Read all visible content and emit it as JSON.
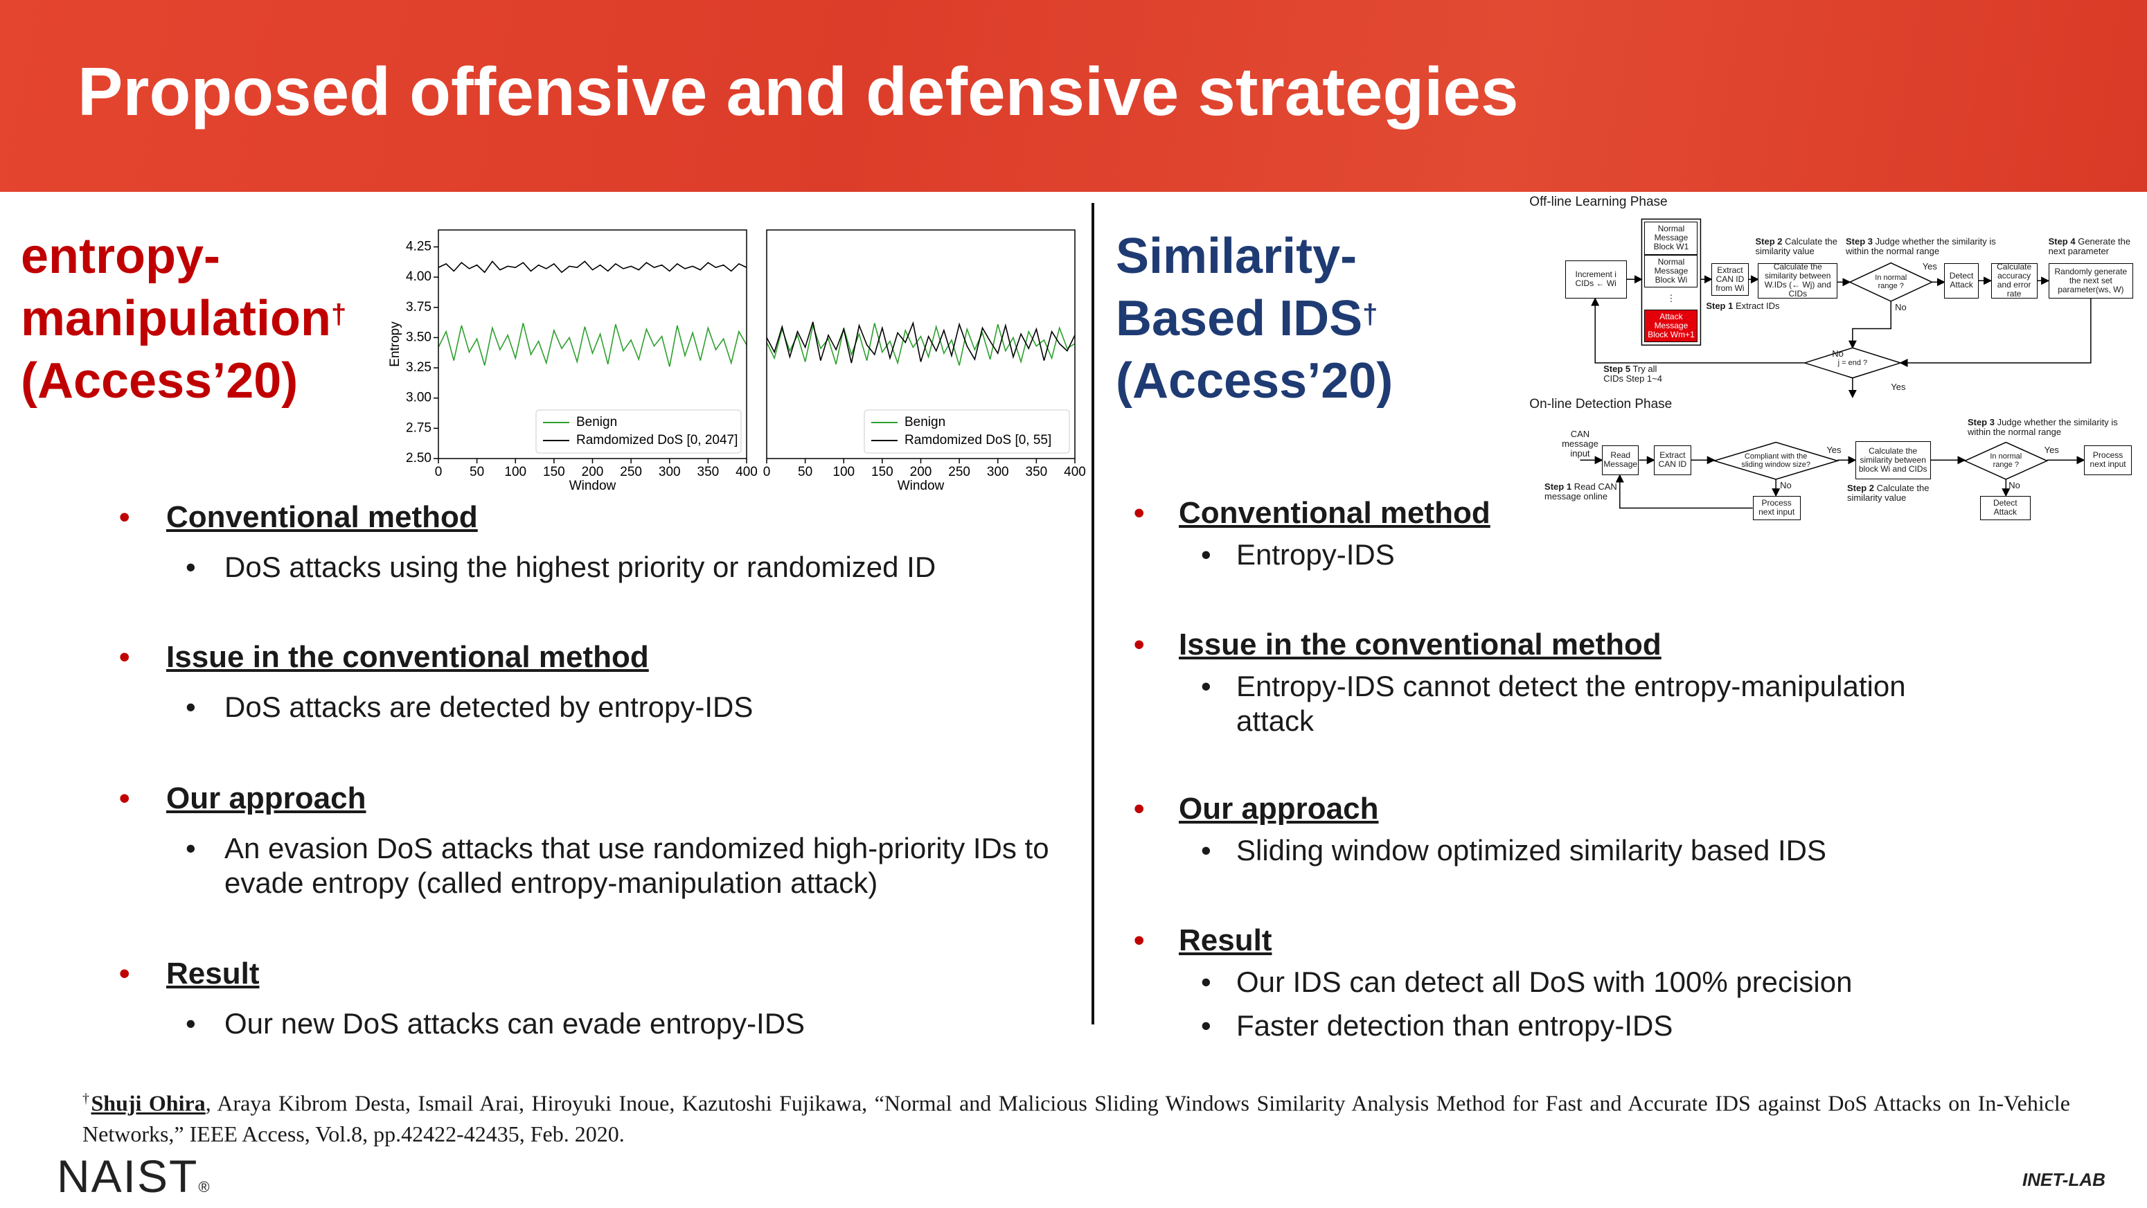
{
  "header": {
    "title": "Proposed offensive and defensive strategies"
  },
  "left": {
    "heading": [
      "entropy-",
      "manipulation"
    ],
    "dagger": "†",
    "venue": "(Access’20)",
    "plots": [
      {
        "type": "line",
        "x": [
          0,
          10,
          20,
          30,
          40,
          50,
          60,
          70,
          80,
          90,
          100,
          110,
          120,
          130,
          140,
          150,
          160,
          170,
          180,
          190,
          200,
          210,
          220,
          230,
          240,
          250,
          260,
          270,
          280,
          290,
          300,
          310,
          320,
          330,
          340,
          350,
          360,
          370,
          380,
          390,
          400
        ],
        "series": [
          {
            "name": "Benign",
            "color": "#2ca02c",
            "values": [
              3.42,
              3.55,
              3.31,
              3.6,
              3.38,
              3.49,
              3.27,
              3.58,
              3.4,
              3.52,
              3.33,
              3.62,
              3.36,
              3.47,
              3.29,
              3.56,
              3.41,
              3.5,
              3.3,
              3.59,
              3.37,
              3.53,
              3.28,
              3.61,
              3.39,
              3.48,
              3.32,
              3.57,
              3.43,
              3.51,
              3.26,
              3.6,
              3.35,
              3.54,
              3.31,
              3.58,
              3.4,
              3.49,
              3.29,
              3.55,
              3.44
            ]
          },
          {
            "name": "Ramdomized DoS [0, 2047]",
            "color": "#000000",
            "values": [
              4.08,
              4.11,
              4.05,
              4.12,
              4.07,
              4.1,
              4.04,
              4.13,
              4.06,
              4.09,
              4.08,
              4.12,
              4.05,
              4.1,
              4.07,
              4.11,
              4.04,
              4.09,
              4.08,
              4.13,
              4.06,
              4.1,
              4.05,
              4.11,
              4.07,
              4.09,
              4.06,
              4.12,
              4.08,
              4.1,
              4.05,
              4.11,
              4.07,
              4.09,
              4.06,
              4.12,
              4.08,
              4.1,
              4.05,
              4.11,
              4.08
            ]
          }
        ],
        "xlim": [
          0,
          400
        ],
        "xticks": [
          0,
          50,
          100,
          150,
          200,
          250,
          300,
          350,
          400
        ],
        "ylim": [
          2.5,
          4.39
        ],
        "yticks": [
          {
            "value": 2.5,
            "label": "2.50"
          },
          2.75,
          {
            "value": 3,
            "label": "3.00"
          },
          3.25,
          {
            "value": 3.5,
            "label": "3.50"
          },
          3.75,
          {
            "value": 4,
            "label": "4.00"
          },
          4.25
        ],
        "xlabel": "Window",
        "ylabel": "Entropy",
        "legend": "lower right"
      },
      {
        "type": "line",
        "x": [
          0,
          10,
          20,
          30,
          40,
          50,
          60,
          70,
          80,
          90,
          100,
          110,
          120,
          130,
          140,
          150,
          160,
          170,
          180,
          190,
          200,
          210,
          220,
          230,
          240,
          250,
          260,
          270,
          280,
          290,
          300,
          310,
          320,
          330,
          340,
          350,
          360,
          370,
          380,
          390,
          400
        ],
        "series": [
          {
            "name": "Benign",
            "color": "#2ca02c",
            "values": [
              3.46,
              3.33,
              3.57,
              3.39,
              3.52,
              3.3,
              3.6,
              3.41,
              3.49,
              3.28,
              3.58,
              3.36,
              3.53,
              3.31,
              3.62,
              3.38,
              3.47,
              3.29,
              3.56,
              3.42,
              3.51,
              3.34,
              3.59,
              3.37,
              3.48,
              3.27,
              3.57,
              3.4,
              3.54,
              3.32,
              3.61,
              3.39,
              3.5,
              3.3,
              3.55,
              3.43,
              3.48,
              3.33,
              3.58,
              3.41,
              3.45
            ]
          },
          {
            "name": "Ramdomized DoS [0, 55]",
            "color": "#000000",
            "values": [
              3.5,
              3.38,
              3.59,
              3.34,
              3.55,
              3.42,
              3.63,
              3.31,
              3.52,
              3.4,
              3.57,
              3.29,
              3.6,
              3.44,
              3.36,
              3.58,
              3.33,
              3.54,
              3.46,
              3.62,
              3.3,
              3.51,
              3.39,
              3.56,
              3.35,
              3.61,
              3.43,
              3.32,
              3.58,
              3.47,
              3.37,
              3.6,
              3.34,
              3.53,
              3.41,
              3.57,
              3.31,
              3.55,
              3.45,
              3.39,
              3.52
            ]
          }
        ],
        "xlim": [
          0,
          400
        ],
        "xticks": [
          0,
          50,
          100,
          150,
          200,
          250,
          300,
          350,
          400
        ],
        "ylim": [
          2.5,
          4.39
        ],
        "xlabel": "Window",
        "legend": "lower right"
      }
    ],
    "sections": [
      {
        "title": "Conventional method",
        "items": [
          "DoS attacks using the highest priority or randomized ID"
        ]
      },
      {
        "title": "Issue in the conventional method",
        "items": [
          "DoS attacks are detected by entropy-IDS"
        ]
      },
      {
        "title": "Our approach",
        "items": [
          "An evasion DoS attacks that use randomized high-priority IDs to evade entropy (called entropy-manipulation attack)"
        ]
      },
      {
        "title": "Result",
        "items": [
          "Our new DoS attacks can evade entropy-IDS"
        ]
      }
    ]
  },
  "right": {
    "heading": [
      "Similarity-",
      "Based IDS"
    ],
    "dagger": "†",
    "venue": "(Access’20)",
    "diagram": {
      "offline": {
        "title": "Off-line Learning Phase",
        "nodes": [
          "Increment i CIDs ← Wi",
          "Normal Message Block W1",
          "Normal Message Block Wi",
          "⋮",
          "Attack Message Block Wm+1",
          "Extract CAN ID from Wi",
          "Calculate the similarity between W.IDs (← Wj) and CIDs",
          "In normal range ?",
          "Detect Attack",
          "Calculate accuracy and error rate",
          "Randomly generate the next set parameter(ws, W)",
          "j = end ?"
        ],
        "branches": [
          "Yes",
          "No",
          "No",
          "Yes"
        ],
        "steps": [
          {
            "label": "Step 1",
            "text": "Extract IDs"
          },
          {
            "label": "Step 2",
            "text": "Calculate the similarity value"
          },
          {
            "label": "Step 3",
            "text": "Judge whether the similarity is within the normal range"
          },
          {
            "label": "Step 4",
            "text": "Generate the next parameter"
          },
          {
            "label": "Step 5",
            "text": "Try all CIDs Step 1~4"
          }
        ]
      },
      "online": {
        "title": "On-line Detection Phase",
        "nodes": [
          "CAN message input",
          "Read Message",
          "Extract CAN ID",
          "Compliant with the sliding window size?",
          "Calculate the similarity between block Wi and CIDs",
          "In normal range ?",
          "Process next input",
          "Process next input",
          "Detect Attack"
        ],
        "branches": [
          "Yes",
          "No",
          "Yes",
          "No"
        ],
        "steps": [
          {
            "label": "Step 1",
            "text": "Read CAN message online"
          },
          {
            "label": "Step 2",
            "text": "Calculate the similarity value"
          },
          {
            "label": "Step 3",
            "text": "Judge whether the similarity is within the normal range"
          }
        ]
      }
    },
    "sections": [
      {
        "title": "Conventional method",
        "items": [
          "Entropy-IDS"
        ]
      },
      {
        "title": "Issue in the conventional method",
        "items": [
          "Entropy-IDS cannot detect the entropy-manipulation attack"
        ]
      },
      {
        "title": "Our approach",
        "items": [
          "Sliding window optimized similarity based IDS"
        ]
      },
      {
        "title": "Result",
        "items": [
          "Our IDS can detect all DoS with 100% precision",
          "Faster detection than entropy-IDS"
        ]
      }
    ]
  },
  "footnote": {
    "dagger": "†",
    "author": "Shuji Ohira",
    "text": ", Araya Kibrom Desta, Ismail Arai, Hiroyuki Inoue, Kazutoshi Fujikawa, “Normal and Malicious Sliding Windows Similarity Analysis Method for Fast and Accurate IDS against DoS Attacks on In-Vehicle Networks,” IEEE Access, Vol.8, pp.42422-42435, Feb. 2020."
  },
  "logos": {
    "left": "NAIST",
    "left_mark": "®",
    "right": "INET-LAB"
  }
}
